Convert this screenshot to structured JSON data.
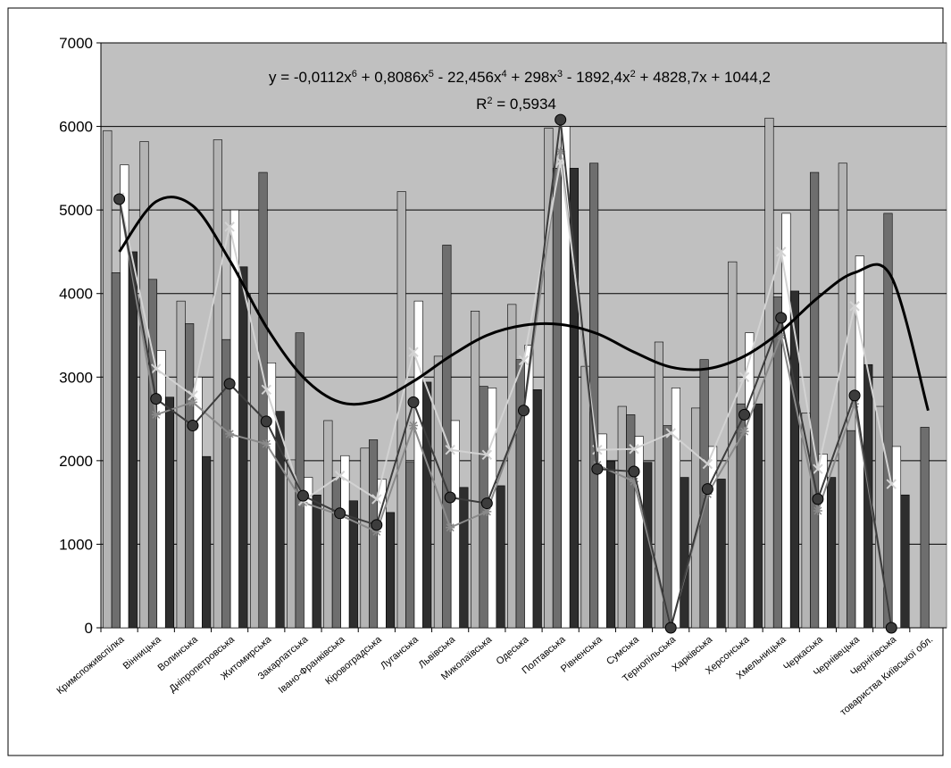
{
  "chart_data": {
    "type": "bar",
    "categories": [
      "Кримспоживспілка",
      "Вінницька",
      "Волинська",
      "Дніпропетровська",
      "Житомирська",
      "Закарпатська",
      "Івано-Франківська",
      "Кіровоградська",
      "Луганська",
      "Львівська",
      "Миколаївська",
      "Одеська",
      "Полтавська",
      "Рівненська",
      "Сумська",
      "Тернопільська",
      "Харківська",
      "Херсонська",
      "Хмельницька",
      "Черкаська",
      "Чернівецька",
      "Чернігівська",
      "товариства Київської обл."
    ],
    "series": [
      {
        "type": "bar",
        "color": "#b4b4b4",
        "values": [
          5950,
          5820,
          3910,
          5840,
          4000,
          2010,
          2480,
          2150,
          5220,
          3250,
          3790,
          3870,
          5980,
          3130,
          2650,
          3420,
          2630,
          4380,
          6100,
          2570,
          5560,
          2650,
          null
        ]
      },
      {
        "type": "bar",
        "color": "#6e6e6e",
        "values": [
          4250,
          4170,
          3640,
          3450,
          5450,
          3530,
          1800,
          2250,
          1980,
          4580,
          2890,
          3210,
          5500,
          5560,
          2550,
          2420,
          3210,
          2680,
          3960,
          5450,
          2360,
          4960,
          2400
        ]
      },
      {
        "type": "bar",
        "color": "#ffffff",
        "values": [
          5540,
          3320,
          3000,
          5000,
          3170,
          1800,
          2060,
          1780,
          3910,
          2480,
          2870,
          3380,
          6000,
          2320,
          2290,
          2870,
          2170,
          3530,
          4960,
          2080,
          4450,
          2170,
          null
        ]
      },
      {
        "type": "bar",
        "color": "#2e2e2e",
        "values": [
          4500,
          2760,
          2050,
          4320,
          2590,
          1590,
          1520,
          1380,
          2940,
          1680,
          1700,
          2850,
          5500,
          1990,
          1980,
          1800,
          1780,
          2680,
          4030,
          1800,
          3150,
          1590,
          null
        ]
      },
      {
        "type": "line",
        "color": "#8a8a8a",
        "marker": "star",
        "values": [
          5130,
          2550,
          2700,
          2320,
          2200,
          1500,
          1350,
          1150,
          2420,
          1200,
          1390,
          2600,
          5700,
          1950,
          1750,
          0,
          1600,
          2350,
          3500,
          1400,
          2680,
          0,
          null
        ]
      },
      {
        "type": "line",
        "color": "#d2d2d2",
        "marker": "x",
        "values": [
          5150,
          3100,
          2780,
          4800,
          2850,
          1520,
          1820,
          1540,
          3300,
          2130,
          2070,
          3200,
          5580,
          2130,
          2140,
          2330,
          1960,
          3000,
          4500,
          1900,
          3850,
          1720,
          null
        ]
      },
      {
        "type": "line",
        "color": "#3c3c3c",
        "marker": "circle",
        "values": [
          5130,
          2740,
          2420,
          2920,
          2470,
          1580,
          1370,
          1230,
          2700,
          1560,
          1490,
          2600,
          6080,
          1900,
          1870,
          0,
          1660,
          2550,
          3710,
          1540,
          2780,
          0,
          null
        ]
      }
    ],
    "trendline": {
      "color": "#000000",
      "values": [
        4500,
        5100,
        5050,
        4400,
        3600,
        3000,
        2700,
        2720,
        2950,
        3250,
        3500,
        3620,
        3630,
        3520,
        3300,
        3120,
        3100,
        3250,
        3550,
        3950,
        4250,
        4200,
        2600
      ],
      "equation": [
        "y = -0,0112x",
        "6",
        " + 0,8086x",
        "5",
        " - 22,456x",
        "4",
        " + 298x",
        "3",
        " - 1892,4x",
        "2",
        " + 4828,7x + 1044,2"
      ],
      "r2": [
        "R",
        "2",
        " = 0,5934"
      ]
    },
    "ylim": [
      0,
      7000
    ],
    "yticks": [
      0,
      1000,
      2000,
      3000,
      4000,
      5000,
      6000,
      7000
    ],
    "grid": true,
    "plot_background": "#c0c0c0"
  }
}
